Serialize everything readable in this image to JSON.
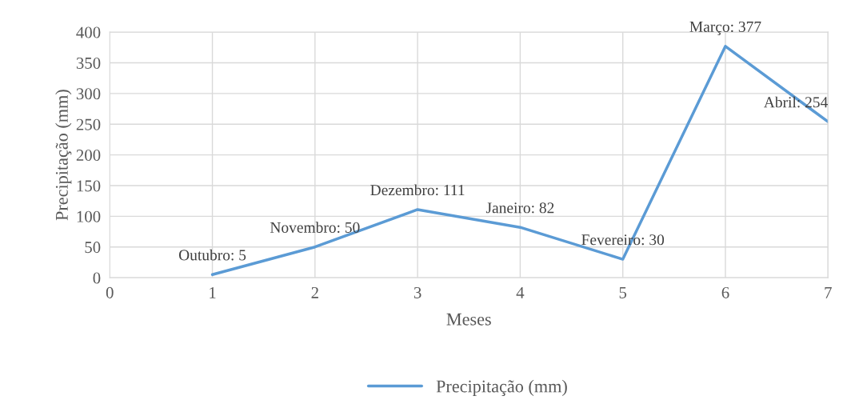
{
  "chart_data": {
    "type": "line",
    "xlabel": "Meses",
    "ylabel": "Precipitação (mm)",
    "x": [
      1,
      2,
      3,
      4,
      5,
      6,
      7
    ],
    "series": [
      {
        "name": "Precipitação (mm)",
        "color": "#5b9bd5",
        "values": [
          5,
          50,
          111,
          82,
          30,
          377,
          254
        ],
        "value_labels": [
          "Outubro: 5",
          "Novembro: 50",
          "Dezembro: 111",
          "Janeiro: 82",
          "Fevereiro: 30",
          "Março: 377",
          "Abril: 254"
        ]
      }
    ],
    "xlim": [
      0,
      7
    ],
    "xticks": [
      0,
      1,
      2,
      3,
      4,
      5,
      6,
      7
    ],
    "ylim": [
      0,
      400
    ],
    "yticks": [
      0,
      50,
      100,
      150,
      200,
      250,
      300,
      350,
      400
    ],
    "grid": true,
    "legend": "bottom",
    "marker": "none",
    "line_style": "solid"
  }
}
